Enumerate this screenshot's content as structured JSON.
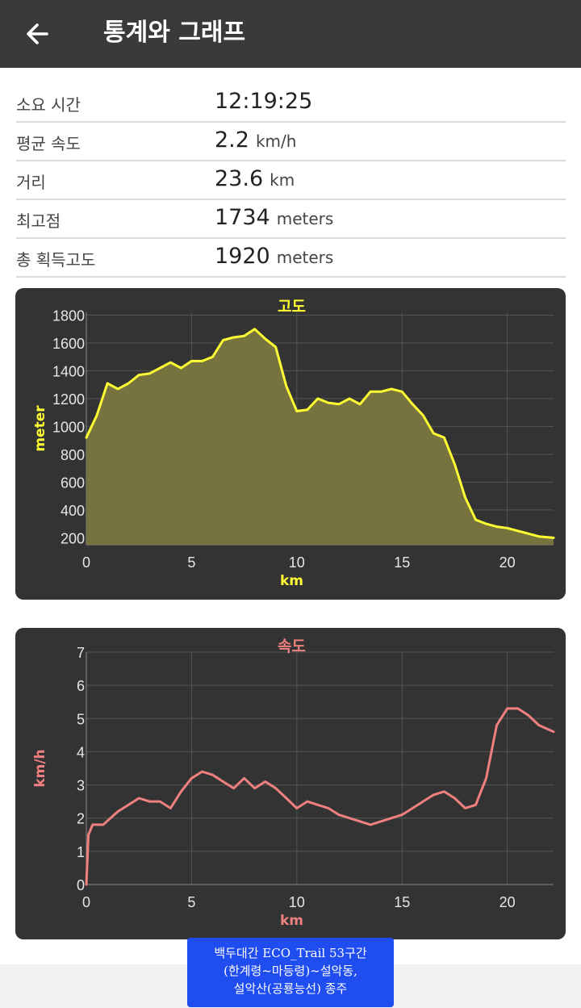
{
  "header": {
    "title": "통계와 그래프"
  },
  "stats": [
    {
      "label": "소요 시간",
      "value": "12:19:25",
      "unit": ""
    },
    {
      "label": "평균 속도",
      "value": "2.2",
      "unit": "km/h"
    },
    {
      "label": "거리",
      "value": "23.6",
      "unit": "km"
    },
    {
      "label": "최고점",
      "value": "1734",
      "unit": "meters"
    },
    {
      "label": "총 획득고도",
      "value": "1920",
      "unit": "meters"
    }
  ],
  "charts": [
    {
      "title": "고도",
      "xlabel": "km",
      "ylabel": "meter",
      "color": "#ffff33",
      "fill": "#77733f",
      "xticks": [
        "0",
        "5",
        "10",
        "15",
        "20"
      ],
      "yticks": [
        "200",
        "400",
        "600",
        "800",
        "1000",
        "1200",
        "1400",
        "1600",
        "1800"
      ]
    },
    {
      "title": "속도",
      "xlabel": "km",
      "ylabel": "km/h",
      "color": "#f08080",
      "xticks": [
        "0",
        "5",
        "10",
        "15",
        "20"
      ],
      "yticks": [
        "0",
        "1",
        "2",
        "3",
        "4",
        "5",
        "6",
        "7"
      ]
    }
  ],
  "chart_data": [
    {
      "type": "area",
      "title": "고도",
      "xlabel": "km",
      "ylabel": "meter",
      "xlim": [
        0,
        22.2
      ],
      "ylim": [
        150,
        1820
      ],
      "grid": true,
      "x": [
        0,
        0.5,
        1,
        1.5,
        2,
        2.5,
        3,
        3.5,
        4,
        4.5,
        5,
        5.5,
        6,
        6.5,
        7,
        7.5,
        8,
        8.5,
        9,
        9.5,
        10,
        10.5,
        11,
        11.5,
        12,
        12.5,
        13,
        13.5,
        14,
        14.5,
        15,
        15.5,
        16,
        16.5,
        17,
        17.5,
        18,
        18.5,
        19,
        19.5,
        20,
        20.5,
        21,
        21.5,
        22.2
      ],
      "y": [
        920,
        1080,
        1310,
        1270,
        1310,
        1370,
        1380,
        1420,
        1460,
        1420,
        1470,
        1470,
        1500,
        1620,
        1640,
        1650,
        1700,
        1630,
        1570,
        1290,
        1110,
        1120,
        1200,
        1170,
        1160,
        1200,
        1160,
        1250,
        1250,
        1270,
        1250,
        1160,
        1080,
        950,
        920,
        730,
        490,
        330,
        300,
        280,
        270,
        250,
        230,
        210,
        200
      ]
    },
    {
      "type": "line",
      "title": "속도",
      "xlabel": "km",
      "ylabel": "km/h",
      "xlim": [
        0,
        22.2
      ],
      "ylim": [
        0,
        7
      ],
      "grid": true,
      "x": [
        0,
        0.1,
        0.3,
        0.8,
        1.5,
        2,
        2.5,
        3,
        3.5,
        4,
        4.5,
        5,
        5.5,
        6,
        6.5,
        7,
        7.5,
        8,
        8.5,
        9,
        9.5,
        10,
        10.5,
        11,
        11.5,
        12,
        12.5,
        13,
        13.5,
        14,
        14.5,
        15,
        15.5,
        16,
        16.5,
        17,
        17.5,
        18,
        18.5,
        19,
        19.5,
        20,
        20.5,
        21,
        21.5,
        22.2
      ],
      "y": [
        0,
        1.5,
        1.8,
        1.8,
        2.2,
        2.4,
        2.6,
        2.5,
        2.5,
        2.3,
        2.8,
        3.2,
        3.4,
        3.3,
        3.1,
        2.9,
        3.2,
        2.9,
        3.1,
        2.9,
        2.6,
        2.3,
        2.5,
        2.4,
        2.3,
        2.1,
        2.0,
        1.9,
        1.8,
        1.9,
        2.0,
        2.1,
        2.3,
        2.5,
        2.7,
        2.8,
        2.6,
        2.3,
        2.4,
        3.2,
        4.8,
        5.3,
        5.3,
        5.1,
        4.8,
        4.6
      ]
    }
  ],
  "banner": {
    "lines": [
      "백두대간 ECO_Trail 53구간",
      "(한계령~마등령)~설악동,",
      "설악산(공룡능선) 종주"
    ]
  }
}
